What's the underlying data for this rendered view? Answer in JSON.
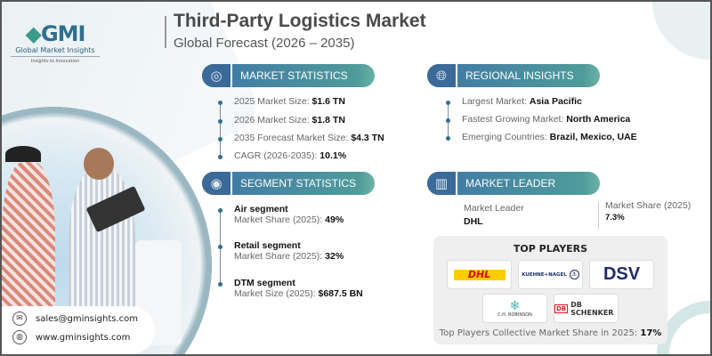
{
  "logo": {
    "mark": "GMI",
    "name": "Global Market Insights",
    "tagline": "Insights to Innovation"
  },
  "header": {
    "title": "Third-Party Logistics Market",
    "subtitle": "Global Forecast (2026 – 2035)"
  },
  "market_statistics": {
    "heading": "MARKET STATISTICS",
    "icon": "globe-chart-icon",
    "items": [
      {
        "label": "2025 Market Size: ",
        "value": "$1.6 TN"
      },
      {
        "label": "2026 Market Size: ",
        "value": "$1.8 TN"
      },
      {
        "label": "2035 Forecast Market Size: ",
        "value": "$4.3 TN"
      },
      {
        "label": "CAGR (2026-2035): ",
        "value": "10.1%"
      }
    ]
  },
  "regional_insights": {
    "heading": "REGIONAL INSIGHTS",
    "icon": "globe-icon",
    "items": [
      {
        "label": "Largest Market: ",
        "value": "Asia Pacific"
      },
      {
        "label": "Fastest Growing Market: ",
        "value": "North America"
      },
      {
        "label": "Emerging Countries: ",
        "value": "Brazil, Mexico, UAE"
      }
    ]
  },
  "segment_statistics": {
    "heading": "SEGMENT STATISTICS",
    "icon": "target-chart-icon",
    "items": [
      {
        "name": "Air segment",
        "label": "Market Share (2025): ",
        "value": "49%"
      },
      {
        "name": "Retail segment",
        "label": "Market Share (2025): ",
        "value": "32%"
      },
      {
        "name": "DTM segment",
        "label": "Market Size (2025): ",
        "value": "$687.5 BN"
      }
    ]
  },
  "market_leader": {
    "heading": "MARKET LEADER",
    "icon": "bar-chart-icon",
    "leader_label": "Market Leader",
    "leader": "DHL",
    "share_label": "Market Share (2025)",
    "share": "7.3%"
  },
  "top_players": {
    "heading": "TOP PLAYERS",
    "logos": [
      "DHL",
      "KUEHNE+NAGEL",
      "DSV",
      "C.H. ROBINSON",
      "DB SCHENKER"
    ],
    "footer_label": "Top Players Collective Market Share in 2025: ",
    "footer_value": "17%"
  },
  "contact": {
    "email": "sales@gminsights.com",
    "website": "www.gminsights.com"
  },
  "colors": {
    "pill_dark": "#3c6a98",
    "pill_teal": "#4f9b9b",
    "dhl_yellow": "#ffcc00",
    "dhl_red": "#d40511",
    "dsv_navy": "#1f2a6b"
  }
}
